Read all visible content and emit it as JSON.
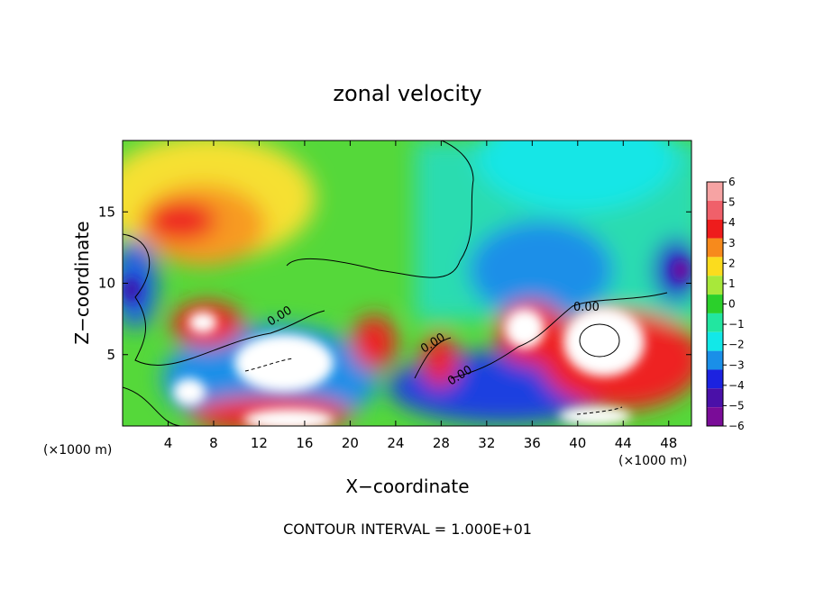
{
  "chart_data": {
    "type": "heatmap",
    "title": "zonal velocity",
    "xlabel": "X−coordinate",
    "ylabel": "Z−coordinate",
    "x_unit_left": "(×1000 m)",
    "x_unit_right": "(×1000 m)",
    "footer": "CONTOUR INTERVAL = 1.000E+01",
    "xlim": [
      0,
      50
    ],
    "ylim": [
      0,
      20
    ],
    "x_ticks": [
      4,
      8,
      12,
      16,
      20,
      24,
      28,
      32,
      36,
      40,
      44,
      48
    ],
    "y_ticks": [
      5,
      10,
      15
    ],
    "colorbar": {
      "min": -6,
      "max": 6,
      "labels": [
        6,
        5,
        4,
        3,
        2,
        1,
        0,
        -1,
        -2,
        -3,
        -4,
        -5,
        -6
      ],
      "colors": [
        "#f6a3a3",
        "#f0606a",
        "#ee1c1c",
        "#f78a1c",
        "#fbdc1e",
        "#a8e83a",
        "#2bd02b",
        "#22e6a0",
        "#12e8e8",
        "#1a8fe8",
        "#1c22e0",
        "#4a10a8",
        "#7a0c98"
      ]
    },
    "contour_labels": [
      "0.00",
      "0.00",
      "0.00",
      "0.00"
    ],
    "features": [
      {
        "x": 6,
        "z": 14,
        "value": 5
      },
      {
        "x": 16,
        "z": 5,
        "value": 6
      },
      {
        "x": 15,
        "z": 1,
        "value": 6
      },
      {
        "x": 4,
        "z": 3,
        "value": 6
      },
      {
        "x": 6,
        "z": 8,
        "value": 6
      },
      {
        "x": 42,
        "z": 7,
        "value": 6
      },
      {
        "x": 34,
        "z": 7,
        "value": 6
      },
      {
        "x": 38,
        "z": 1,
        "value": 6
      },
      {
        "x": 1,
        "z": 11,
        "value": -5
      },
      {
        "x": 49,
        "z": 11,
        "value": -6
      },
      {
        "x": 33,
        "z": 10,
        "value": -4
      },
      {
        "x": 40,
        "z": 14,
        "value": -2
      }
    ]
  }
}
